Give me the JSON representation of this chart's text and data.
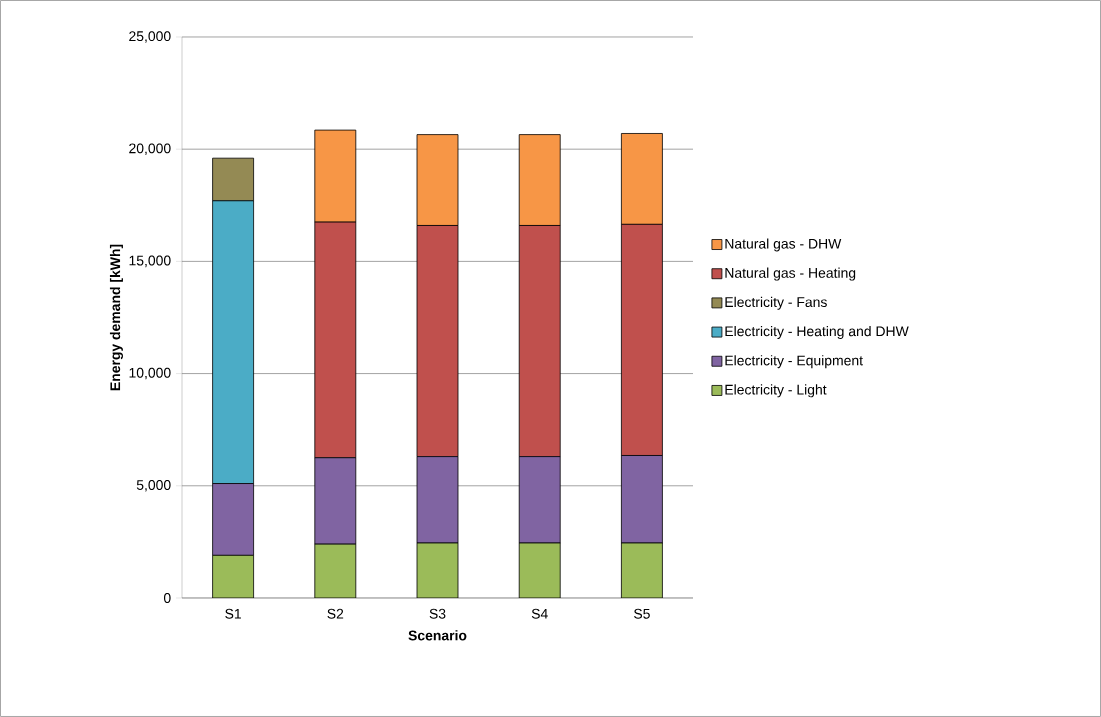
{
  "chart_data": {
    "type": "bar",
    "stacked": true,
    "xlabel": "Scenario",
    "ylabel": "Energy demand [kWh]",
    "categories": [
      "S1",
      "S2",
      "S3",
      "S4",
      "S5"
    ],
    "series": [
      {
        "name": "Electricity - Light",
        "color": "#9bbb59",
        "values": [
          1900,
          2400,
          2450,
          2450,
          2450
        ]
      },
      {
        "name": "Electricity - Equipment",
        "color": "#8064a2",
        "values": [
          3200,
          3850,
          3850,
          3850,
          3900
        ]
      },
      {
        "name": "Electricity - Heating and DHW",
        "color": "#4bacc6",
        "values": [
          12600,
          0,
          0,
          0,
          0
        ]
      },
      {
        "name": "Electricity - Fans",
        "color": "#948a54",
        "values": [
          1900,
          0,
          0,
          0,
          0
        ]
      },
      {
        "name": "Natural gas - Heating",
        "color": "#c0504d",
        "values": [
          0,
          10500,
          10300,
          10300,
          10300
        ]
      },
      {
        "name": "Natural gas - DHW",
        "color": "#f79646",
        "values": [
          0,
          4100,
          4050,
          4050,
          4050
        ]
      }
    ],
    "ylim": [
      0,
      25000
    ],
    "yticks": [
      {
        "value": 0,
        "label": "0"
      },
      {
        "value": 5000,
        "label": "5,000"
      },
      {
        "value": 10000,
        "label": "10,000"
      },
      {
        "value": 15000,
        "label": "15,000"
      },
      {
        "value": 20000,
        "label": "20,000"
      },
      {
        "value": 25000,
        "label": "25,000"
      }
    ],
    "grid": "y",
    "legend": "right"
  }
}
